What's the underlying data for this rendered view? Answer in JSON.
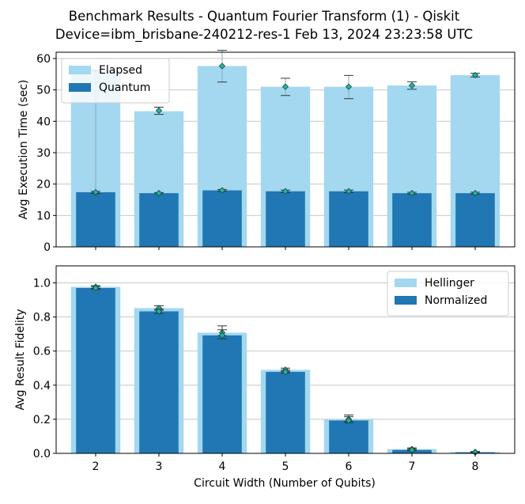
{
  "title_line1": "Benchmark Results - Quantum Fourier Transform (1) - Qiskit",
  "title_line2": "Device=ibm_brisbane-240212-res-1  Feb 13, 2024 23:23:58 UTC",
  "colors": {
    "light": "#a3d8f0",
    "dark": "#2077b4",
    "marker": "#1fb5a0",
    "grid": "#c8c8c8"
  },
  "chart_data": [
    {
      "type": "bar",
      "categories": [
        "2",
        "3",
        "4",
        "5",
        "6",
        "7",
        "8"
      ],
      "ylabel": "Avg Execution Time (sec)",
      "ylim": [
        0,
        62
      ],
      "yticks": [
        0,
        10,
        20,
        30,
        40,
        50,
        60
      ],
      "grid": true,
      "legend_position": "top-left",
      "series": [
        {
          "name": "Elapsed",
          "values": [
            56.2,
            43.2,
            57.6,
            51.0,
            51.0,
            51.4,
            54.7
          ],
          "marker_values": [
            17.3,
            43.4,
            57.6,
            51.0,
            51.0,
            51.4,
            54.7
          ],
          "err_low": [
            17.0,
            42.2,
            52.5,
            48.2,
            47.2,
            50.2,
            54.1
          ],
          "err_high": [
            56.2,
            44.5,
            62.6,
            53.7,
            54.6,
            52.6,
            55.3
          ]
        },
        {
          "name": "Quantum",
          "values": [
            17.4,
            17.1,
            18.0,
            17.7,
            17.7,
            17.1,
            17.1
          ],
          "err_low": [
            17.1,
            16.9,
            17.7,
            17.3,
            17.3,
            16.8,
            16.8
          ],
          "err_high": [
            17.7,
            17.3,
            18.3,
            18.1,
            18.1,
            17.4,
            17.4
          ]
        }
      ]
    },
    {
      "type": "bar",
      "categories": [
        "2",
        "3",
        "4",
        "5",
        "6",
        "7",
        "8"
      ],
      "xlabel": "Circuit Width (Number of Qubits)",
      "ylabel": "Avg Result Fidelity",
      "ylim": [
        0,
        1.1
      ],
      "yticks": [
        "0.0",
        "0.2",
        "0.4",
        "0.6",
        "0.8",
        "1.0"
      ],
      "grid": true,
      "legend_position": "top-right",
      "series": [
        {
          "name": "Hellinger",
          "values": [
            0.977,
            0.852,
            0.708,
            0.49,
            0.2,
            0.025,
            0.008
          ],
          "err_low": [
            0.968,
            0.84,
            0.69,
            0.481,
            0.188,
            0.02,
            0.006
          ],
          "err_high": [
            0.984,
            0.866,
            0.748,
            0.5,
            0.225,
            0.032,
            0.011
          ]
        },
        {
          "name": "Normalized",
          "values": [
            0.97,
            0.833,
            0.692,
            0.478,
            0.193,
            0.02,
            0.006
          ],
          "err_low": [
            0.963,
            0.82,
            0.672,
            0.471,
            0.18,
            0.015,
            0.004
          ],
          "err_high": [
            0.978,
            0.846,
            0.725,
            0.488,
            0.215,
            0.027,
            0.009
          ]
        }
      ]
    }
  ]
}
